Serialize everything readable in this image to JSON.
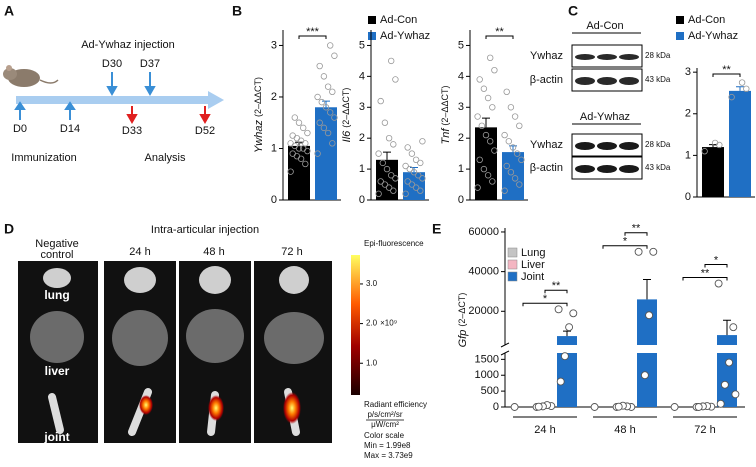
{
  "panel_labels": [
    "A",
    "B",
    "C",
    "D",
    "E"
  ],
  "timeline": {
    "title": "Ad-Ywhaz injection",
    "events": [
      "D0",
      "D14",
      "D30",
      "D37",
      "D33",
      "D52"
    ],
    "phases": [
      "Immunization",
      "Analysis"
    ]
  },
  "legend_B": [
    {
      "name": "Ad-Con",
      "color": "#000000"
    },
    {
      "name": "Ad-Ywhaz",
      "color": "#1f6fc4"
    }
  ],
  "legend_C": [
    {
      "name": "Ad-Con",
      "color": "#000000"
    },
    {
      "name": "Ad-Ywhaz",
      "color": "#1f6fc4"
    }
  ],
  "blot": {
    "groups": [
      {
        "title": "Ad-Con",
        "rows": [
          {
            "protein": "Ywhaz",
            "size": "28 kDa"
          },
          {
            "protein": "β-actin",
            "size": "43 kDa"
          }
        ]
      },
      {
        "title": "Ad-Ywhaz",
        "rows": [
          {
            "protein": "Ywhaz",
            "size": "28 kDa"
          },
          {
            "protein": "β-actin",
            "size": "43 kDa"
          }
        ]
      }
    ]
  },
  "imaging": {
    "title": "Intra-articular injection",
    "columns": [
      [
        "Negative",
        "control"
      ],
      [
        "24 h"
      ],
      [
        "48 h"
      ],
      [
        "72 h"
      ]
    ],
    "organs": [
      "lung",
      "liver",
      "joint"
    ],
    "colorbar": {
      "title": "Epi-fluorescence",
      "lim": [
        199000000,
        3730000000
      ],
      "ticks": [
        {
          "value": 1000000000,
          "label": "1.0"
        },
        {
          "value": 2000000000,
          "label": "2.0"
        },
        {
          "value": 3000000000,
          "label": "3.0"
        }
      ],
      "scale_label": "×10⁹",
      "unit_title": "Radiant efficiency",
      "unit_numerator": "p/s/cm²/sr",
      "unit_denominator": "μW/cm²",
      "notes": [
        "Color scale",
        "Min = 1.99e8",
        "Max = 3.73e9"
      ]
    }
  },
  "chart_data": [
    {
      "type": "bar",
      "ylabel": "Ywhaz",
      "ylabel_unit": "(2–ΔΔCT)",
      "ylim": [
        0,
        3.3
      ],
      "yticks": [
        0,
        1,
        2,
        3
      ],
      "values": [
        1.05,
        1.8
      ],
      "errors": [
        0.07,
        0.12
      ],
      "colors": [
        "#000000",
        "#1f6fc4"
      ],
      "points": [
        [
          0.55,
          0.7,
          0.8,
          0.85,
          0.9,
          0.95,
          1.0,
          1.0,
          1.05,
          1.1,
          1.1,
          1.15,
          1.2,
          1.25,
          1.3,
          1.4,
          1.5,
          1.6
        ],
        [
          0.9,
          1.1,
          1.3,
          1.4,
          1.5,
          1.6,
          1.7,
          1.8,
          1.9,
          2.0,
          2.1,
          2.2,
          2.4,
          2.6,
          2.8,
          3.0
        ]
      ],
      "significance": [
        {
          "from": 0,
          "to": 1,
          "label": "***"
        }
      ]
    },
    {
      "type": "bar",
      "ylabel": "Il6",
      "ylabel_unit": "(2–ΔΔCT)",
      "ylim": [
        0,
        5.5
      ],
      "yticks": [
        0,
        1,
        2,
        3,
        4,
        5
      ],
      "values": [
        1.3,
        0.9
      ],
      "errors": [
        0.25,
        0.15
      ],
      "colors": [
        "#000000",
        "#1f6fc4"
      ],
      "points": [
        [
          0.2,
          0.3,
          0.4,
          0.5,
          0.6,
          0.7,
          0.8,
          1.0,
          1.2,
          1.5,
          1.8,
          2.0,
          2.5,
          3.2,
          3.9,
          4.5
        ],
        [
          0.2,
          0.3,
          0.4,
          0.5,
          0.6,
          0.7,
          0.8,
          0.9,
          1.0,
          1.1,
          1.2,
          1.3,
          1.5,
          1.7,
          1.9
        ]
      ],
      "significance": []
    },
    {
      "type": "bar",
      "ylabel": "Tnf",
      "ylabel_unit": "(2–ΔΔCT)",
      "ylim": [
        0,
        5.5
      ],
      "yticks": [
        0,
        1,
        2,
        3,
        4,
        5
      ],
      "values": [
        2.35,
        1.55
      ],
      "errors": [
        0.3,
        0.2
      ],
      "colors": [
        "#000000",
        "#1f6fc4"
      ],
      "points": [
        [
          0.4,
          0.6,
          0.8,
          1.0,
          1.3,
          1.6,
          1.9,
          2.1,
          2.4,
          2.7,
          3.0,
          3.3,
          3.6,
          3.9,
          4.2,
          4.6
        ],
        [
          0.3,
          0.5,
          0.7,
          0.9,
          1.1,
          1.3,
          1.5,
          1.7,
          1.9,
          2.1,
          2.4,
          2.7,
          3.0,
          3.5
        ]
      ],
      "significance": [
        {
          "from": 0,
          "to": 1,
          "label": "**"
        }
      ]
    },
    {
      "type": "bar",
      "ylim": [
        0,
        3.1
      ],
      "yticks": [
        0,
        1,
        2,
        3
      ],
      "values": [
        1.2,
        2.55
      ],
      "errors": [
        0.06,
        0.1
      ],
      "colors": [
        "#000000",
        "#1f6fc4"
      ],
      "points": [
        [
          1.1,
          1.25,
          1.3
        ],
        [
          2.4,
          2.6,
          2.75
        ]
      ],
      "significance": [
        {
          "from": 0,
          "to": 1,
          "label": "**"
        }
      ]
    },
    {
      "type": "broken_bar",
      "ylabel": "Gfp",
      "ylabel_unit": "(2–ΔCT)",
      "categories": [
        "24 h",
        "48 h",
        "72 h"
      ],
      "ylim_lower": [
        0,
        1700
      ],
      "yticks_lower": [
        0,
        500,
        1000,
        1500
      ],
      "ylim_upper": [
        3000,
        62000
      ],
      "yticks_upper": [
        20000,
        40000,
        60000
      ],
      "series": [
        {
          "name": "Lung",
          "color": "#c4c4c4",
          "values": [
            0,
            0,
            0
          ],
          "errors": [
            0,
            0,
            0
          ],
          "points": [
            [
              0
            ],
            [
              0
            ],
            [
              0
            ]
          ]
        },
        {
          "name": "Liver",
          "color": "#f4b6c2",
          "values": [
            0,
            0,
            0
          ],
          "errors": [
            0,
            0,
            0
          ],
          "points": [
            [
              0,
              30,
              60,
              20,
              10
            ],
            [
              0,
              0,
              20,
              40,
              10
            ],
            [
              0,
              10,
              30,
              20,
              0
            ]
          ]
        },
        {
          "name": "Joint",
          "color": "#1f6fc4",
          "values": [
            7500,
            26000,
            8000
          ],
          "errors": [
            2500,
            10000,
            7500
          ],
          "points": [
            [
              21000,
              19000,
              12000,
              1600,
              800
            ],
            [
              50000,
              50000,
              18000,
              1000
            ],
            [
              34000,
              12000,
              1400,
              700,
              100,
              400
            ]
          ]
        }
      ],
      "significance": [
        {
          "category": 0,
          "from": 0,
          "to": 2,
          "label": "*"
        },
        {
          "category": 0,
          "from": 1,
          "to": 2,
          "label": "**"
        },
        {
          "category": 1,
          "from": 0,
          "to": 2,
          "label": "*"
        },
        {
          "category": 1,
          "from": 1,
          "to": 2,
          "label": "**"
        },
        {
          "category": 2,
          "from": 0,
          "to": 2,
          "label": "**"
        },
        {
          "category": 2,
          "from": 1,
          "to": 2,
          "label": "*"
        }
      ]
    }
  ]
}
